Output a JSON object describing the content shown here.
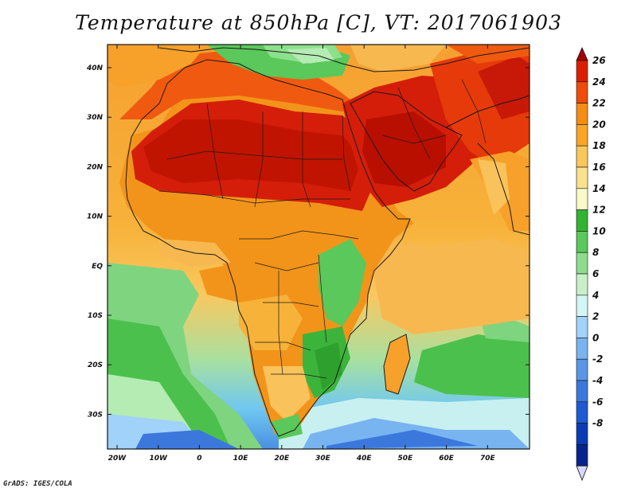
{
  "title": "Temperature at 850hPa [C], VT: 2017061903",
  "credit": "GrADS: IGES/COLA",
  "map": {
    "lat_labels": [
      "40N",
      "30N",
      "20N",
      "10N",
      "EQ",
      "10S",
      "20S",
      "30S"
    ],
    "lon_labels": [
      "20W",
      "10W",
      "0",
      "10E",
      "20E",
      "30E",
      "40E",
      "50E",
      "60E",
      "70E"
    ]
  },
  "colorbar": {
    "labels": [
      "26",
      "24",
      "22",
      "20",
      "18",
      "16",
      "14",
      "12",
      "10",
      "8",
      "6",
      "4",
      "2",
      "0",
      "-2",
      "-4",
      "-6",
      "-8"
    ],
    "colors": [
      "#a50000",
      "#dc1e00",
      "#f04b0a",
      "#f58c14",
      "#faa528",
      "#fac85a",
      "#fae18c",
      "#fafac8",
      "#32b432",
      "#5ac85a",
      "#8cdc8c",
      "#c8f0c8",
      "#d2f5f5",
      "#a0d2fa",
      "#78b4f0",
      "#5a96e6",
      "#3c78dc",
      "#1e5ad2",
      "#0a3cb4",
      "#06248c",
      "#d8d8ff"
    ]
  }
}
